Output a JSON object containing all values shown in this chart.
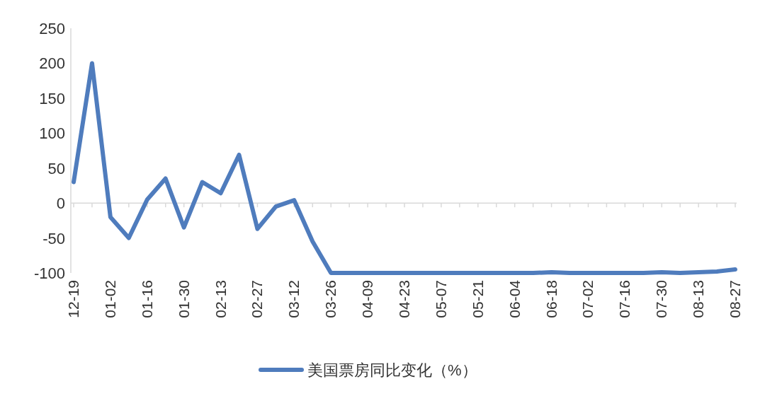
{
  "chart_data": {
    "type": "line",
    "categories": [
      "12-19",
      null,
      "01-02",
      null,
      "01-16",
      null,
      "01-30",
      null,
      "02-13",
      null,
      "02-27",
      null,
      "03-12",
      null,
      "03-26",
      null,
      "04-09",
      null,
      "04-23",
      null,
      "05-07",
      null,
      "05-21",
      null,
      "06-04",
      null,
      "06-18",
      null,
      "07-02",
      null,
      "07-16",
      null,
      "07-30",
      null,
      "08-13",
      null,
      "08-27"
    ],
    "series": [
      {
        "name": "美国票房同比变化（%）",
        "color": "#4f7cbd",
        "values": [
          30,
          200,
          -20,
          -50,
          5,
          35,
          -35,
          30,
          14,
          69,
          -37,
          -5,
          4,
          -55,
          -100,
          -100,
          -100,
          -100,
          -100,
          -100,
          -100,
          -100,
          -100,
          -100,
          -100,
          -100,
          -99,
          -100,
          -100,
          -100,
          -100,
          -100,
          -99,
          -100,
          -99,
          -98,
          -95
        ]
      }
    ],
    "ylim": [
      -100,
      250
    ],
    "yticks": [
      -100,
      -50,
      0,
      50,
      100,
      150,
      200,
      250
    ],
    "legend": "bottom"
  }
}
